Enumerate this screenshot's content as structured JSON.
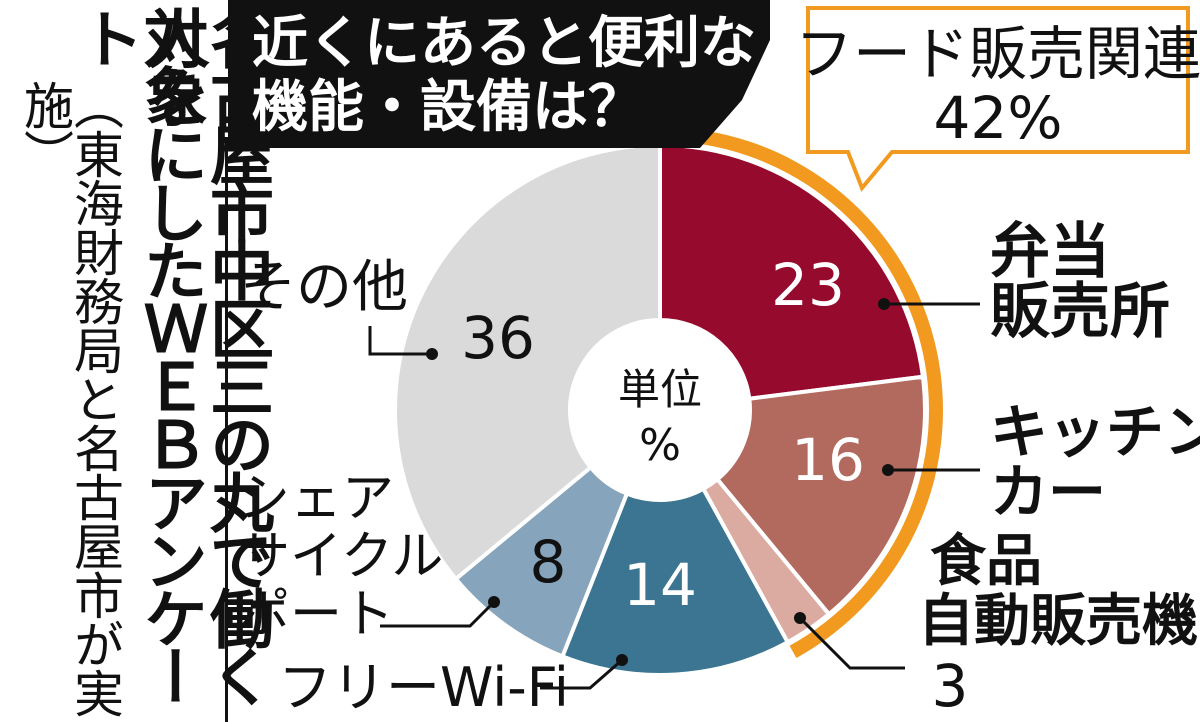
{
  "source_note": {
    "line1": "名古屋市中区三の丸で働く人を",
    "line2": "対象にしたＷＥＢアンケート",
    "line3": "（東海財務局と名古屋市が実施）"
  },
  "chart_data": {
    "type": "pie",
    "title_lines": [
      "近くにあると便利な",
      "機能・設備は？"
    ],
    "center_label": [
      "単位",
      "%"
    ],
    "group": {
      "label_lines": [
        "フード販売関連",
        "42%"
      ],
      "value": 42
    },
    "slices": [
      {
        "label_lines": [
          "弁当",
          "販売所"
        ],
        "value": 23,
        "color": "#960a2d",
        "in_group": true
      },
      {
        "label_lines": [
          "キッチン",
          "カー"
        ],
        "value": 16,
        "color": "#b26a5f",
        "in_group": true
      },
      {
        "label_lines": [
          "食品",
          "自動販売機"
        ],
        "value": 3,
        "color": "#dbaaa0",
        "in_group": true
      },
      {
        "label_lines": [
          "フリーWi-Fi"
        ],
        "value": 14,
        "color": "#3b7592",
        "in_group": false
      },
      {
        "label_lines": [
          "シェア",
          "サイクル",
          "ポート"
        ],
        "value": 8,
        "color": "#86a4bb",
        "in_group": false
      },
      {
        "label_lines": [
          "その他"
        ],
        "value": 36,
        "color": "#dadada",
        "in_group": false
      }
    ],
    "colors": {
      "group_ring": "#f29a1f",
      "title_bg": "#111111",
      "title_text": "#ffffff"
    }
  }
}
